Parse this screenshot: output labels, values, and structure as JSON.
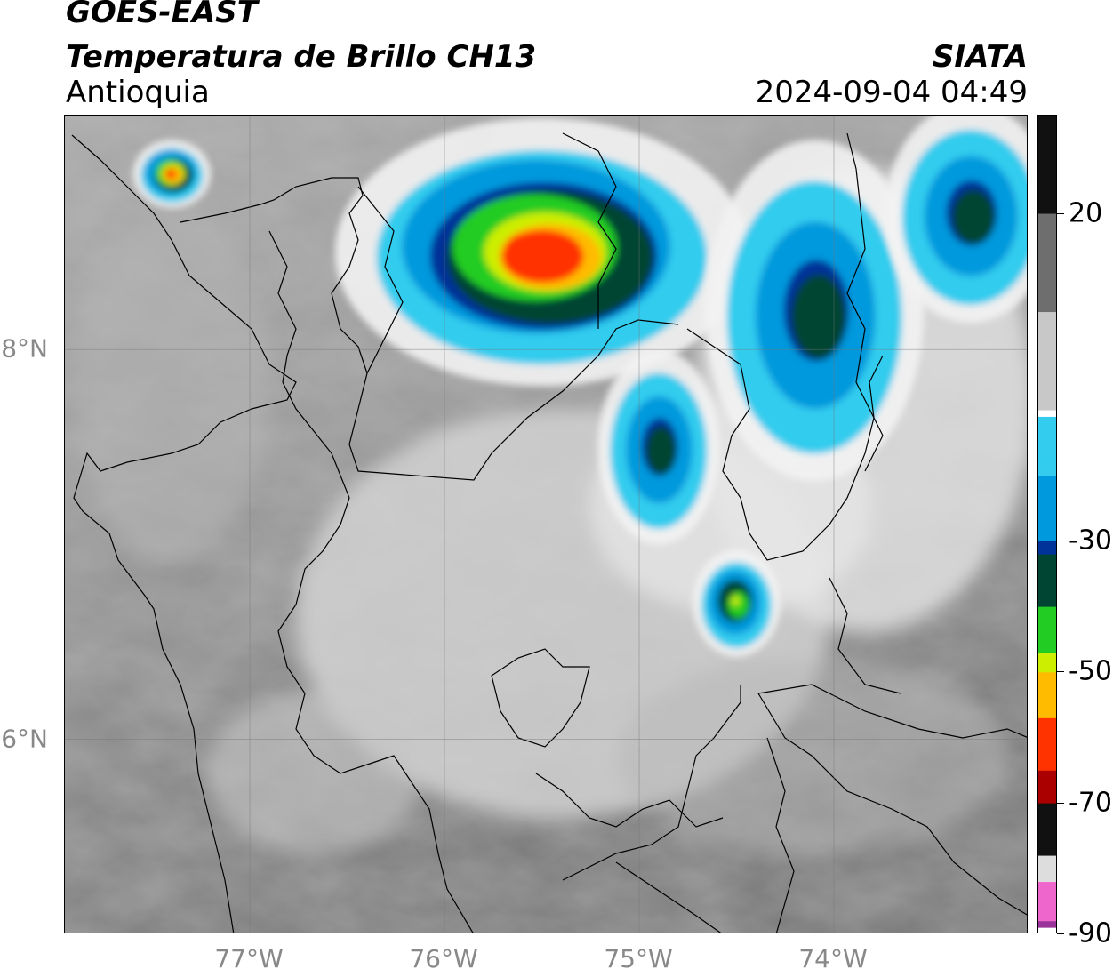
{
  "header": {
    "satellite": "GOES-EAST",
    "product": "Temperatura de Brillo CH13",
    "region": "Antioquia",
    "organization": "SIATA",
    "datetime": "2024-09-04 04:49"
  },
  "map": {
    "lon_range": [
      -77.95,
      -73.0
    ],
    "lat_range": [
      5.0,
      9.2
    ],
    "lon_ticks": [
      {
        "value": -77,
        "label": "77°W"
      },
      {
        "value": -76,
        "label": "76°W"
      },
      {
        "value": -75,
        "label": "75°W"
      },
      {
        "value": -74,
        "label": "74°W"
      }
    ],
    "lat_ticks": [
      {
        "value": 8,
        "label": "8°N"
      },
      {
        "value": 6,
        "label": "6°N"
      }
    ],
    "cloud_cells": [
      {
        "name": "cell-north-center",
        "lon": -75.5,
        "lat": 8.5,
        "rx_deg": 0.85,
        "ry_deg": 0.55,
        "min_temp": -65
      },
      {
        "name": "cell-northwest",
        "lon": -77.4,
        "lat": 8.9,
        "rx_deg": 0.16,
        "ry_deg": 0.14,
        "min_temp": -62
      },
      {
        "name": "cell-southeast-small",
        "lon": -74.5,
        "lat": 6.7,
        "rx_deg": 0.18,
        "ry_deg": 0.22,
        "min_temp": -48
      },
      {
        "name": "band-northeast",
        "lon": -74.1,
        "lat": 8.2,
        "rx_deg": 0.45,
        "ry_deg": 0.7,
        "min_temp": -40
      },
      {
        "name": "band-east-curve",
        "lon": -74.9,
        "lat": 7.5,
        "rx_deg": 0.25,
        "ry_deg": 0.4,
        "min_temp": -38
      },
      {
        "name": "cell-far-northeast",
        "lon": -73.3,
        "lat": 8.7,
        "rx_deg": 0.35,
        "ry_deg": 0.45,
        "min_temp": -40
      }
    ]
  },
  "colorbar": {
    "temp_range": [
      -90,
      35
    ],
    "ticks": [
      {
        "value": 20,
        "label": "20"
      },
      {
        "value": -30,
        "label": "-30"
      },
      {
        "value": -50,
        "label": "-50"
      },
      {
        "value": -70,
        "label": "-70"
      },
      {
        "value": -90,
        "label": "-90"
      }
    ],
    "stops": [
      {
        "temp": 35,
        "color": "#111111"
      },
      {
        "temp": 20,
        "color": "#6e6e6e"
      },
      {
        "temp": 5,
        "color": "#c8c8c8"
      },
      {
        "temp": -10,
        "color": "#ffffff"
      },
      {
        "temp": -11,
        "color": "#33ccee"
      },
      {
        "temp": -20,
        "color": "#0099dd"
      },
      {
        "temp": -30,
        "color": "#003399"
      },
      {
        "temp": -32,
        "color": "#004433"
      },
      {
        "temp": -40,
        "color": "#22cc22"
      },
      {
        "temp": -47,
        "color": "#ccee00"
      },
      {
        "temp": -50,
        "color": "#ffbb00"
      },
      {
        "temp": -57,
        "color": "#ff3300"
      },
      {
        "temp": -65,
        "color": "#aa0000"
      },
      {
        "temp": -70,
        "color": "#111111"
      },
      {
        "temp": -78,
        "color": "#dddddd"
      },
      {
        "temp": -82,
        "color": "#ee66cc"
      },
      {
        "temp": -88,
        "color": "#993399"
      },
      {
        "temp": -89,
        "color": "#ffffff"
      }
    ]
  }
}
